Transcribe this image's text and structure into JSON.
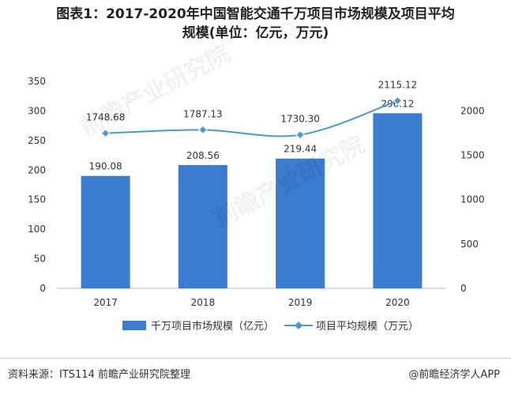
{
  "title": {
    "line1": "图表1：2017-2020年中国智能交通千万项目市场规模及项目平均",
    "line2": "规模(单位：亿元，万元)"
  },
  "footer": {
    "source": "资料来源：ITS114 前瞻产业研究院整理",
    "brand": "@前瞻经济学人APP"
  },
  "watermark": "前瞻产业研究院",
  "chart_data": {
    "type": "bar",
    "categories": [
      "2017",
      "2018",
      "2019",
      "2020"
    ],
    "series": [
      {
        "name": "千万项目市场规模（亿元）",
        "type": "bar",
        "axis": "left",
        "color": "#3a7ccf",
        "values": [
          190.08,
          208.56,
          219.44,
          296.12
        ],
        "labels": [
          "190.08",
          "208.56",
          "219.44",
          "296.12"
        ]
      },
      {
        "name": "项目平均规模（万元）",
        "type": "line",
        "axis": "right",
        "color": "#4a9ac9",
        "values": [
          1748.68,
          1787.13,
          1730.3,
          2115.12
        ],
        "labels": [
          "1748.68",
          "1787.13",
          "1730.30",
          "2115.12"
        ]
      }
    ],
    "y_left": {
      "min": 0,
      "max": 350,
      "ticks": [
        "0",
        "50",
        "100",
        "150",
        "200",
        "250",
        "300",
        "350"
      ]
    },
    "y_right": {
      "min": 0,
      "max": 2000,
      "ticks": [
        "0",
        "500",
        "1000",
        "1500",
        "2000"
      ]
    },
    "grid": false,
    "legend": "bottom"
  }
}
